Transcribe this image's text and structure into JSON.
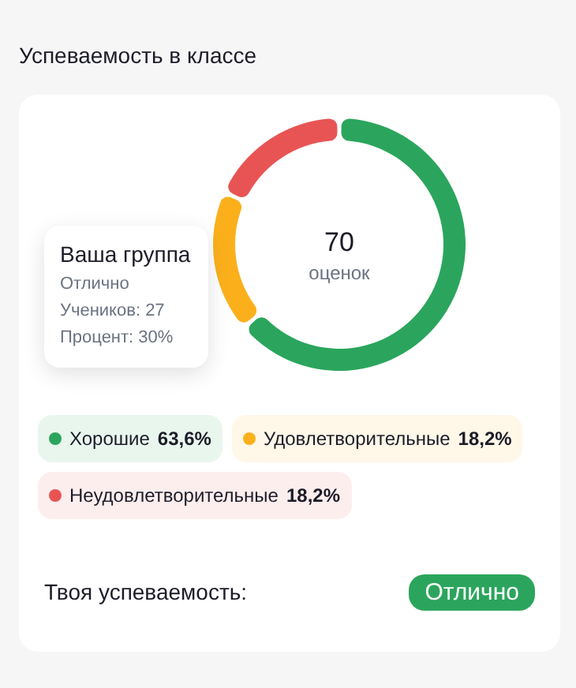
{
  "chart_data": {
    "type": "donut",
    "title": "Успеваемость в классе",
    "categories": [
      "Хорошие",
      "Удовлетворительные",
      "Неудовлетворительные"
    ],
    "values": [
      63.6,
      18.2,
      18.2
    ],
    "colors": [
      "#2ba55d",
      "#fbb01b",
      "#e85454"
    ],
    "value_labels": [
      "63,6%",
      "18,2%",
      "18,2%"
    ],
    "legend": "bottom",
    "annotations": [
      "70",
      "оценок",
      "Ваша группа",
      "Отлично",
      "Учеников: 27",
      "Процент: 30%",
      "Твоя успеваемость:",
      "Отлично"
    ]
  }
}
